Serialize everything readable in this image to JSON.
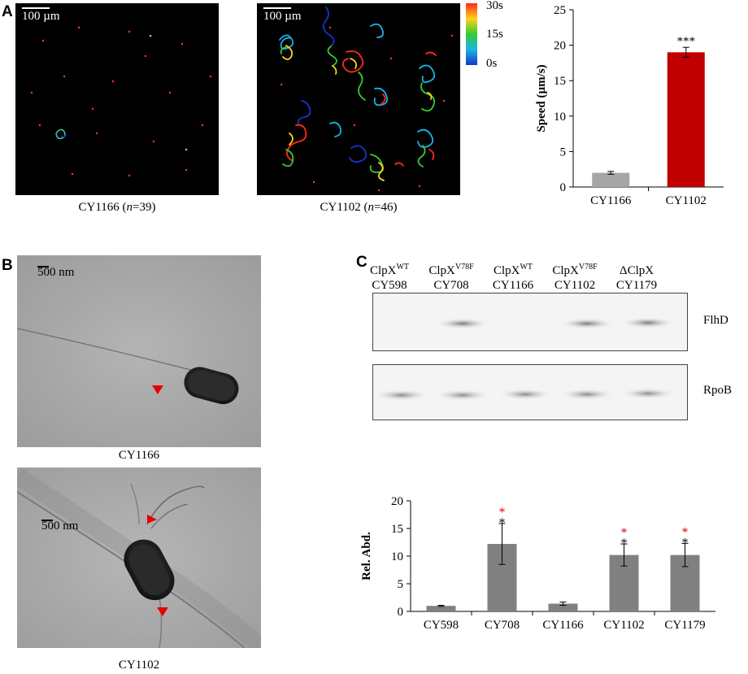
{
  "panels": {
    "a": {
      "letter": "A",
      "images": [
        {
          "scale_label": "100 µm",
          "caption_strain": "CY1166",
          "caption_n": "n",
          "caption_count": "=39"
        },
        {
          "scale_label": "100 µm",
          "caption_strain": "CY1102",
          "caption_n": "n",
          "caption_count": "=46"
        }
      ],
      "colorbar": {
        "ticks": [
          "30s",
          "15s",
          "0s"
        ],
        "colors": [
          "#ff2a1a",
          "#ffd21a",
          "#33cc33",
          "#1ab4e6",
          "#1a33cc"
        ]
      }
    },
    "b": {
      "letter": "B",
      "images": [
        {
          "scale_label": "500 nm",
          "caption": "CY1166"
        },
        {
          "scale_label": "500 nm",
          "caption": "CY1102"
        }
      ],
      "arrow_color": "#e60000"
    },
    "c": {
      "letter": "C",
      "lanes": [
        {
          "genotype": "ClpX",
          "sup": "WT",
          "strain": "CY598"
        },
        {
          "genotype": "ClpX",
          "sup": "V78F",
          "strain": "CY708"
        },
        {
          "genotype": "ClpX",
          "sup": "WT",
          "strain": "CY1166"
        },
        {
          "genotype": "ClpX",
          "sup": "V78F",
          "strain": "CY1102"
        },
        {
          "genotype": "ΔClpX",
          "sup": "",
          "strain": "CY1179"
        }
      ],
      "blots": [
        {
          "label": "FlhD"
        },
        {
          "label": "RpoB"
        }
      ]
    }
  },
  "chart_data": [
    {
      "type": "bar",
      "categories": [
        "CY1166",
        "CY1102"
      ],
      "values": [
        2.0,
        19.0
      ],
      "errors": [
        0.2,
        0.7
      ],
      "colors": [
        "#a6a6a6",
        "#c00000"
      ],
      "annotations": [
        "",
        "***"
      ],
      "annotation_color": "#000000",
      "ylabel": "Speed (µm/s)",
      "ylim": [
        0,
        25
      ],
      "yticks": [
        0,
        5,
        10,
        15,
        20,
        25
      ],
      "grid": false
    },
    {
      "type": "bar",
      "categories": [
        "CY598",
        "CY708",
        "CY1166",
        "CY1102",
        "CY1179"
      ],
      "values": [
        1.0,
        12.2,
        1.4,
        10.2,
        10.2
      ],
      "errors": [
        0.1,
        3.7,
        0.3,
        2.0,
        2.1
      ],
      "color": "#808080",
      "annotations_red": [
        "",
        "*",
        "",
        "*",
        "*"
      ],
      "annotations_black": [
        "",
        "*",
        "",
        "*",
        "*"
      ],
      "annotation_colors": [
        "#e60000",
        "#000000"
      ],
      "ylabel": "Rel. Abd.",
      "ylim": [
        0,
        20
      ],
      "yticks": [
        0,
        5,
        10,
        15,
        20
      ],
      "grid": false
    }
  ]
}
